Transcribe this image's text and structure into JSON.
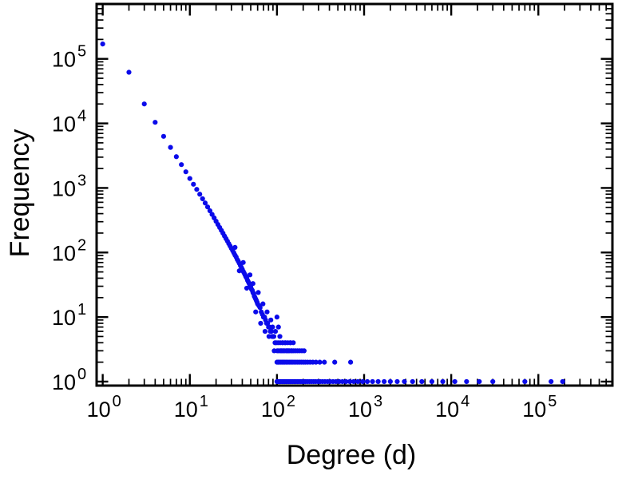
{
  "figure": {
    "background": "#ffffff",
    "frame_color": "#000000"
  },
  "chart_data": {
    "type": "scatter",
    "title": "",
    "xlabel": "Degree (d)",
    "ylabel": "Frequency",
    "x_scale": "log",
    "y_scale": "log",
    "grid": false,
    "legend": false,
    "marker_color": "#0b0bea",
    "marker_radius": 3.1,
    "tick_base": "10",
    "x_ticks_exponents": [
      0,
      1,
      2,
      3,
      4,
      5
    ],
    "y_ticks_exponents": [
      0,
      1,
      2,
      3,
      4,
      5
    ],
    "x_range_log": [
      -0.07,
      5.85
    ],
    "y_range_log": [
      -0.062,
      5.85
    ],
    "points": [
      [
        1,
        170000
      ],
      [
        2,
        62000
      ],
      [
        3,
        20000
      ],
      [
        4,
        10400
      ],
      [
        5,
        6300
      ],
      [
        6,
        4250
      ],
      [
        7,
        3050
      ],
      [
        8,
        2300
      ],
      [
        9,
        1780
      ],
      [
        10,
        1400
      ],
      [
        11,
        1140
      ],
      [
        12,
        950
      ],
      [
        13,
        800
      ],
      [
        14,
        680
      ],
      [
        15,
        585
      ],
      [
        16,
        508
      ],
      [
        17,
        443
      ],
      [
        18,
        389
      ],
      [
        19,
        344
      ],
      [
        20,
        305
      ],
      [
        21,
        272
      ],
      [
        22,
        244
      ],
      [
        23,
        220
      ],
      [
        24,
        199
      ],
      [
        25,
        180
      ],
      [
        26,
        164
      ],
      [
        27,
        150
      ],
      [
        28,
        137
      ],
      [
        29,
        126
      ],
      [
        30,
        116
      ],
      [
        31,
        107
      ],
      [
        32,
        99
      ],
      [
        33,
        91
      ],
      [
        34,
        85
      ],
      [
        35,
        78
      ],
      [
        36,
        73
      ],
      [
        37,
        68
      ],
      [
        38,
        63
      ],
      [
        39,
        59
      ],
      [
        40,
        55
      ],
      [
        41,
        51
      ],
      [
        42,
        48
      ],
      [
        43,
        45
      ],
      [
        44,
        42
      ],
      [
        45,
        40
      ],
      [
        46,
        37
      ],
      [
        47,
        35
      ],
      [
        48,
        33
      ],
      [
        49,
        31
      ],
      [
        50,
        29
      ],
      [
        51,
        27
      ],
      [
        52,
        26
      ],
      [
        53,
        24
      ],
      [
        54,
        23
      ],
      [
        55,
        21
      ],
      [
        56,
        20
      ],
      [
        57,
        19
      ],
      [
        58,
        18
      ],
      [
        59,
        17
      ],
      [
        60,
        16
      ],
      [
        62,
        15
      ],
      [
        64,
        14
      ],
      [
        66,
        12
      ],
      [
        68,
        11
      ],
      [
        70,
        10
      ],
      [
        72,
        10
      ],
      [
        74,
        9
      ],
      [
        76,
        8
      ],
      [
        78,
        8
      ],
      [
        80,
        7
      ],
      [
        82,
        7
      ],
      [
        84,
        6
      ],
      [
        86,
        6
      ],
      [
        88,
        5
      ],
      [
        90,
        5
      ],
      [
        92,
        5
      ],
      [
        95,
        4
      ],
      [
        98,
        4
      ],
      [
        33,
        120
      ],
      [
        37,
        52
      ],
      [
        41,
        70
      ],
      [
        45,
        28
      ],
      [
        49,
        45
      ],
      [
        53,
        33
      ],
      [
        57,
        12
      ],
      [
        61,
        24
      ],
      [
        65,
        8
      ],
      [
        69,
        16
      ],
      [
        73,
        6
      ],
      [
        77,
        12
      ],
      [
        81,
        5
      ],
      [
        85,
        9
      ],
      [
        89,
        7
      ],
      [
        93,
        3
      ],
      [
        96,
        6
      ],
      [
        100,
        10
      ],
      [
        104,
        7
      ],
      [
        108,
        5
      ],
      [
        112,
        3
      ],
      [
        116,
        4
      ],
      [
        120,
        3
      ],
      [
        125,
        4
      ],
      [
        130,
        3
      ],
      [
        136,
        3
      ],
      [
        142,
        4
      ],
      [
        148,
        3
      ],
      [
        155,
        3
      ],
      [
        101,
        3
      ],
      [
        105,
        3
      ],
      [
        110,
        3
      ],
      [
        115,
        3
      ],
      [
        121,
        3
      ],
      [
        127,
        3
      ],
      [
        133,
        3
      ],
      [
        140,
        3
      ],
      [
        147,
        3
      ],
      [
        163,
        3
      ],
      [
        172,
        3
      ],
      [
        182,
        3
      ],
      [
        193,
        3
      ],
      [
        205,
        3
      ],
      [
        103,
        4
      ],
      [
        109,
        4
      ],
      [
        116,
        4
      ],
      [
        124,
        4
      ],
      [
        133,
        4
      ],
      [
        143,
        4
      ],
      [
        154,
        4
      ],
      [
        100,
        2
      ],
      [
        103,
        2
      ],
      [
        106,
        2
      ],
      [
        110,
        2
      ],
      [
        114,
        2
      ],
      [
        118,
        2
      ],
      [
        122,
        2
      ],
      [
        127,
        2
      ],
      [
        132,
        2
      ],
      [
        138,
        2
      ],
      [
        144,
        2
      ],
      [
        150,
        2
      ],
      [
        157,
        2
      ],
      [
        165,
        2
      ],
      [
        173,
        2
      ],
      [
        182,
        2
      ],
      [
        191,
        2
      ],
      [
        201,
        2
      ],
      [
        212,
        2
      ],
      [
        225,
        2
      ],
      [
        240,
        2
      ],
      [
        258,
        2
      ],
      [
        280,
        2
      ],
      [
        310,
        2
      ],
      [
        350,
        2
      ],
      [
        460,
        2
      ],
      [
        700,
        2
      ],
      [
        100,
        1
      ],
      [
        102,
        1
      ],
      [
        105,
        1
      ],
      [
        108,
        1
      ],
      [
        111,
        1
      ],
      [
        115,
        1
      ],
      [
        119,
        1
      ],
      [
        123,
        1
      ],
      [
        127,
        1
      ],
      [
        131,
        1
      ],
      [
        136,
        1
      ],
      [
        141,
        1
      ],
      [
        146,
        1
      ],
      [
        152,
        1
      ],
      [
        158,
        1
      ],
      [
        164,
        1
      ],
      [
        171,
        1
      ],
      [
        178,
        1
      ],
      [
        186,
        1
      ],
      [
        194,
        1
      ],
      [
        203,
        1
      ],
      [
        213,
        1
      ],
      [
        224,
        1
      ],
      [
        236,
        1
      ],
      [
        249,
        1
      ],
      [
        263,
        1
      ],
      [
        278,
        1
      ],
      [
        295,
        1
      ],
      [
        313,
        1
      ],
      [
        333,
        1
      ],
      [
        355,
        1
      ],
      [
        380,
        1
      ],
      [
        408,
        1
      ],
      [
        440,
        1
      ],
      [
        476,
        1
      ],
      [
        518,
        1
      ],
      [
        565,
        1
      ],
      [
        620,
        1
      ],
      [
        685,
        1
      ],
      [
        760,
        1
      ],
      [
        850,
        1
      ],
      [
        960,
        1
      ],
      [
        1090,
        1
      ],
      [
        1250,
        1
      ],
      [
        1450,
        1
      ],
      [
        1700,
        1
      ],
      [
        2000,
        1
      ],
      [
        2400,
        1
      ],
      [
        2900,
        1
      ],
      [
        3600,
        1
      ],
      [
        4600,
        1
      ],
      [
        6000,
        1
      ],
      [
        8000,
        1
      ],
      [
        11000,
        1
      ],
      [
        15000,
        1
      ],
      [
        21000,
        1
      ],
      [
        30000,
        1
      ],
      [
        70000,
        1
      ],
      [
        140000,
        1
      ],
      [
        190000,
        1
      ]
    ]
  }
}
